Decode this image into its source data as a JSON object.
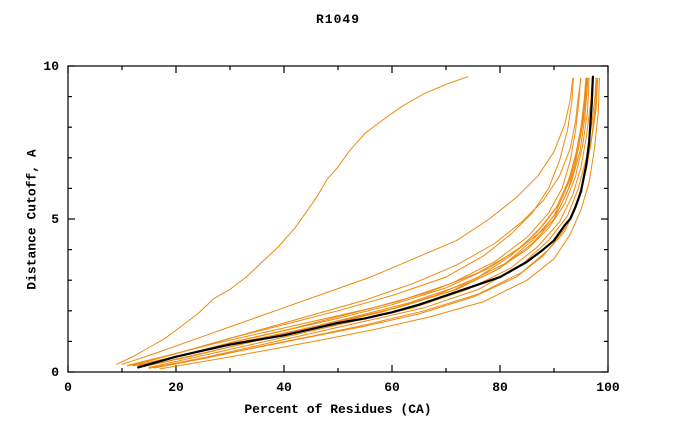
{
  "title": "R1049",
  "chart_data": {
    "type": "line",
    "title": "R1049",
    "xlabel": "Percent of Residues (CA)",
    "ylabel": "Distance Cutoff, A",
    "xlim": [
      0,
      100
    ],
    "ylim": [
      0,
      10
    ],
    "x_major_ticks": [
      0,
      20,
      40,
      60,
      80,
      100
    ],
    "x_minor_step": 10,
    "y_major_ticks": [
      0,
      5,
      10
    ],
    "y_minor_step": 1,
    "grid": false,
    "legend": "none",
    "colors": {
      "model_line": "#ef8a0f",
      "reference_line": "#000000",
      "frame": "#000000",
      "background": "#ffffff"
    },
    "series": [
      {
        "name": "orange-outlier",
        "color": "#ef8a0f",
        "width": 1,
        "points": [
          [
            9,
            0.25
          ],
          [
            12,
            0.5
          ],
          [
            15,
            0.8
          ],
          [
            18,
            1.1
          ],
          [
            21,
            1.5
          ],
          [
            24,
            1.9
          ],
          [
            27,
            2.4
          ],
          [
            30,
            2.7
          ],
          [
            33,
            3.1
          ],
          [
            36,
            3.6
          ],
          [
            39,
            4.1
          ],
          [
            42,
            4.7
          ],
          [
            44,
            5.2
          ],
          [
            46,
            5.7
          ],
          [
            48,
            6.3
          ],
          [
            50,
            6.7
          ],
          [
            52,
            7.2
          ],
          [
            55,
            7.8
          ],
          [
            58,
            8.2
          ],
          [
            62,
            8.7
          ],
          [
            66,
            9.1
          ],
          [
            70,
            9.4
          ],
          [
            74,
            9.65
          ]
        ]
      },
      {
        "name": "orange-2",
        "color": "#ef8a0f",
        "width": 1,
        "points": [
          [
            10,
            0.25
          ],
          [
            16,
            0.6
          ],
          [
            24,
            1.1
          ],
          [
            32,
            1.6
          ],
          [
            40,
            2.1
          ],
          [
            48,
            2.6
          ],
          [
            56,
            3.1
          ],
          [
            64,
            3.7
          ],
          [
            72,
            4.3
          ],
          [
            78,
            5.0
          ],
          [
            83,
            5.7
          ],
          [
            87,
            6.4
          ],
          [
            90,
            7.2
          ],
          [
            92,
            8.1
          ],
          [
            93,
            8.9
          ],
          [
            93.5,
            9.6
          ]
        ]
      },
      {
        "name": "orange-3",
        "color": "#ef8a0f",
        "width": 1,
        "points": [
          [
            11,
            0.2
          ],
          [
            19,
            0.55
          ],
          [
            28,
            1.0
          ],
          [
            37,
            1.45
          ],
          [
            46,
            1.9
          ],
          [
            55,
            2.35
          ],
          [
            64,
            2.9
          ],
          [
            72,
            3.5
          ],
          [
            79,
            4.2
          ],
          [
            84,
            4.9
          ],
          [
            88,
            5.6
          ],
          [
            91,
            6.4
          ],
          [
            93,
            7.3
          ],
          [
            94,
            8.2
          ],
          [
            94.5,
            9.0
          ],
          [
            95,
            9.6
          ]
        ]
      },
      {
        "name": "orange-4",
        "color": "#ef8a0f",
        "width": 1,
        "points": [
          [
            12,
            0.2
          ],
          [
            20,
            0.5
          ],
          [
            30,
            0.95
          ],
          [
            40,
            1.35
          ],
          [
            50,
            1.75
          ],
          [
            60,
            2.2
          ],
          [
            70,
            2.75
          ],
          [
            78,
            3.4
          ],
          [
            84,
            4.1
          ],
          [
            88,
            4.8
          ],
          [
            91,
            5.5
          ],
          [
            93,
            6.3
          ],
          [
            94.5,
            7.3
          ],
          [
            95.5,
            8.3
          ],
          [
            96,
            9.6
          ]
        ]
      },
      {
        "name": "orange-5",
        "color": "#ef8a0f",
        "width": 1,
        "points": [
          [
            14,
            0.18
          ],
          [
            22,
            0.5
          ],
          [
            32,
            0.9
          ],
          [
            42,
            1.3
          ],
          [
            52,
            1.7
          ],
          [
            62,
            2.15
          ],
          [
            72,
            2.7
          ],
          [
            80,
            3.4
          ],
          [
            86,
            4.2
          ],
          [
            90,
            5.0
          ],
          [
            92.5,
            5.9
          ],
          [
            94,
            6.8
          ],
          [
            95,
            7.8
          ],
          [
            95.8,
            8.8
          ],
          [
            96.2,
            9.6
          ]
        ]
      },
      {
        "name": "orange-6",
        "color": "#ef8a0f",
        "width": 1,
        "points": [
          [
            15,
            0.15
          ],
          [
            24,
            0.5
          ],
          [
            34,
            0.9
          ],
          [
            44,
            1.3
          ],
          [
            54,
            1.7
          ],
          [
            64,
            2.1
          ],
          [
            74,
            2.7
          ],
          [
            82,
            3.4
          ],
          [
            87,
            4.1
          ],
          [
            91,
            4.9
          ],
          [
            93.5,
            5.8
          ],
          [
            95,
            6.7
          ],
          [
            96,
            7.7
          ],
          [
            96.8,
            8.8
          ],
          [
            97.1,
            9.6
          ]
        ]
      },
      {
        "name": "orange-7",
        "color": "#ef8a0f",
        "width": 1,
        "points": [
          [
            16,
            0.15
          ],
          [
            26,
            0.5
          ],
          [
            36,
            0.9
          ],
          [
            46,
            1.3
          ],
          [
            56,
            1.7
          ],
          [
            66,
            2.1
          ],
          [
            76,
            2.7
          ],
          [
            84,
            3.5
          ],
          [
            89,
            4.3
          ],
          [
            92.5,
            5.1
          ],
          [
            94.5,
            6.0
          ],
          [
            96,
            7.0
          ],
          [
            97,
            8.1
          ],
          [
            97.6,
            9.0
          ],
          [
            97.8,
            9.6
          ]
        ]
      },
      {
        "name": "orange-8",
        "color": "#ef8a0f",
        "width": 1,
        "points": [
          [
            15,
            0.12
          ],
          [
            25,
            0.45
          ],
          [
            35,
            0.8
          ],
          [
            45,
            1.15
          ],
          [
            55,
            1.5
          ],
          [
            65,
            1.9
          ],
          [
            75,
            2.45
          ],
          [
            83,
            3.1
          ],
          [
            88,
            3.8
          ],
          [
            92,
            4.6
          ],
          [
            94,
            5.4
          ],
          [
            95.5,
            6.3
          ],
          [
            96.8,
            7.4
          ],
          [
            97.8,
            8.6
          ],
          [
            98.1,
            9.6
          ]
        ]
      },
      {
        "name": "orange-9",
        "color": "#ef8a0f",
        "width": 1,
        "points": [
          [
            17,
            0.1
          ],
          [
            27,
            0.4
          ],
          [
            37,
            0.72
          ],
          [
            47,
            1.05
          ],
          [
            57,
            1.4
          ],
          [
            67,
            1.8
          ],
          [
            77,
            2.3
          ],
          [
            85,
            3.0
          ],
          [
            90,
            3.7
          ],
          [
            93,
            4.5
          ],
          [
            95,
            5.3
          ],
          [
            96.5,
            6.2
          ],
          [
            97.5,
            7.3
          ],
          [
            98.2,
            8.5
          ],
          [
            98.4,
            9.6
          ]
        ]
      },
      {
        "name": "orange-10",
        "color": "#ef8a0f",
        "width": 1,
        "points": [
          [
            13,
            0.2
          ],
          [
            21,
            0.55
          ],
          [
            31,
            1.0
          ],
          [
            41,
            1.4
          ],
          [
            51,
            1.85
          ],
          [
            61,
            2.3
          ],
          [
            71,
            2.9
          ],
          [
            79,
            3.6
          ],
          [
            85,
            4.4
          ],
          [
            89,
            5.2
          ],
          [
            91.5,
            6.0
          ],
          [
            93,
            6.9
          ],
          [
            94,
            7.9
          ],
          [
            94.6,
            8.8
          ],
          [
            94.9,
            9.6
          ]
        ]
      },
      {
        "name": "orange-11",
        "color": "#ef8a0f",
        "width": 1,
        "points": [
          [
            12,
            0.22
          ],
          [
            20,
            0.6
          ],
          [
            30,
            1.1
          ],
          [
            40,
            1.55
          ],
          [
            50,
            2.0
          ],
          [
            60,
            2.5
          ],
          [
            70,
            3.1
          ],
          [
            77,
            3.8
          ],
          [
            82,
            4.5
          ],
          [
            86,
            5.2
          ],
          [
            89,
            6.0
          ],
          [
            91,
            6.9
          ],
          [
            92.5,
            7.9
          ],
          [
            93.3,
            8.8
          ],
          [
            93.6,
            9.6
          ]
        ]
      },
      {
        "name": "orange-12",
        "color": "#ef8a0f",
        "width": 1,
        "points": [
          [
            14,
            0.18
          ],
          [
            23,
            0.52
          ],
          [
            33,
            0.95
          ],
          [
            43,
            1.38
          ],
          [
            53,
            1.8
          ],
          [
            63,
            2.25
          ],
          [
            73,
            2.85
          ],
          [
            81,
            3.55
          ],
          [
            86,
            4.3
          ],
          [
            90,
            5.1
          ],
          [
            92,
            5.9
          ],
          [
            93.8,
            6.9
          ],
          [
            95,
            8.0
          ],
          [
            95.6,
            8.9
          ],
          [
            95.9,
            9.6
          ]
        ]
      },
      {
        "name": "orange-13",
        "color": "#ef8a0f",
        "width": 1,
        "points": [
          [
            13,
            0.18
          ],
          [
            21,
            0.52
          ],
          [
            31,
            0.95
          ],
          [
            41,
            1.3
          ],
          [
            51,
            1.7
          ],
          [
            61,
            2.1
          ],
          [
            71,
            2.65
          ],
          [
            79,
            3.3
          ],
          [
            85,
            4.0
          ],
          [
            89,
            4.7
          ],
          [
            92,
            5.5
          ],
          [
            94,
            6.4
          ],
          [
            95.3,
            7.4
          ],
          [
            96.2,
            8.5
          ],
          [
            96.5,
            9.6
          ]
        ]
      },
      {
        "name": "orange-14",
        "color": "#ef8a0f",
        "width": 1,
        "points": [
          [
            16,
            0.13
          ],
          [
            26,
            0.47
          ],
          [
            36,
            0.85
          ],
          [
            46,
            1.2
          ],
          [
            56,
            1.58
          ],
          [
            66,
            2.0
          ],
          [
            76,
            2.55
          ],
          [
            84,
            3.25
          ],
          [
            89,
            4.0
          ],
          [
            92.5,
            4.8
          ],
          [
            94.5,
            5.7
          ],
          [
            96,
            6.6
          ],
          [
            97,
            7.7
          ],
          [
            97.7,
            8.8
          ],
          [
            97.9,
            9.6
          ]
        ]
      },
      {
        "name": "orange-15",
        "color": "#ef8a0f",
        "width": 1,
        "points": [
          [
            12,
            0.2
          ],
          [
            22,
            0.58
          ],
          [
            34,
            1.05
          ],
          [
            46,
            1.5
          ],
          [
            58,
            1.95
          ],
          [
            68,
            2.5
          ],
          [
            76,
            3.1
          ],
          [
            82,
            3.8
          ],
          [
            87,
            4.6
          ],
          [
            90.5,
            5.4
          ],
          [
            92.8,
            6.3
          ],
          [
            94.3,
            7.3
          ],
          [
            95.3,
            8.3
          ],
          [
            95.9,
            9.1
          ],
          [
            96.1,
            9.6
          ]
        ]
      },
      {
        "name": "orange-16",
        "color": "#ef8a0f",
        "width": 1,
        "points": [
          [
            11,
            0.22
          ],
          [
            18,
            0.52
          ],
          [
            27,
            0.92
          ],
          [
            37,
            1.32
          ],
          [
            47,
            1.72
          ],
          [
            57,
            2.12
          ],
          [
            67,
            2.62
          ],
          [
            76,
            3.25
          ],
          [
            83,
            3.95
          ],
          [
            88,
            4.65
          ],
          [
            91,
            5.35
          ],
          [
            93.2,
            6.2
          ],
          [
            94.8,
            7.2
          ],
          [
            95.7,
            8.3
          ],
          [
            96.3,
            9.6
          ]
        ]
      },
      {
        "name": "black-main",
        "color": "#000000",
        "width": 2.2,
        "points": [
          [
            13,
            0.15
          ],
          [
            16,
            0.3
          ],
          [
            20,
            0.5
          ],
          [
            25,
            0.7
          ],
          [
            30,
            0.9
          ],
          [
            35,
            1.05
          ],
          [
            40,
            1.2
          ],
          [
            45,
            1.4
          ],
          [
            50,
            1.6
          ],
          [
            55,
            1.75
          ],
          [
            60,
            1.95
          ],
          [
            65,
            2.2
          ],
          [
            70,
            2.5
          ],
          [
            75,
            2.8
          ],
          [
            80,
            3.1
          ],
          [
            85,
            3.6
          ],
          [
            88,
            4.0
          ],
          [
            90,
            4.3
          ],
          [
            92,
            4.8
          ],
          [
            93,
            5.0
          ],
          [
            94,
            5.4
          ],
          [
            95,
            5.9
          ],
          [
            96,
            6.8
          ],
          [
            96.5,
            7.5
          ],
          [
            97,
            8.8
          ],
          [
            97.2,
            9.65
          ]
        ]
      }
    ]
  }
}
